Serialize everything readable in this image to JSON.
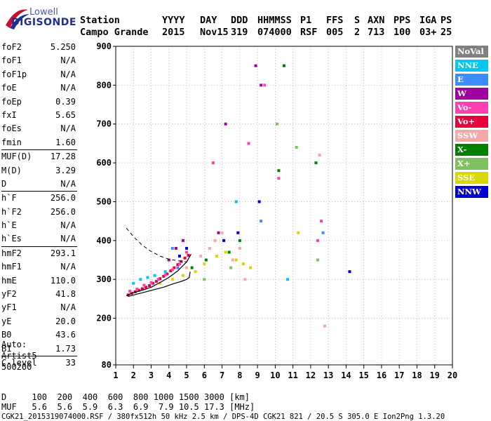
{
  "logo": {
    "line1": "Lowell",
    "line2": "DIGISONDE"
  },
  "header": {
    "labels": [
      "Station",
      "YYYY",
      "DAY",
      "DDD",
      "HHMMSS",
      "P1",
      "FFS",
      "S",
      "AXN",
      "PPS",
      "IGA",
      "PS"
    ],
    "values": [
      "Campo Grande",
      "2015",
      "Nov15",
      "319",
      "074000",
      "RSF",
      "005",
      "2",
      "713",
      "100",
      "03+",
      "25"
    ]
  },
  "params": [
    {
      "key": "foF2",
      "value": "5.250",
      "sep": false
    },
    {
      "key": "foF1",
      "value": "N/A",
      "sep": false
    },
    {
      "key": "foF1p",
      "value": "N/A",
      "sep": false
    },
    {
      "key": "foE",
      "value": "N/A",
      "sep": false
    },
    {
      "key": "foEp",
      "value": "0.39",
      "sep": false
    },
    {
      "key": "fxI",
      "value": "5.65",
      "sep": false
    },
    {
      "key": "foEs",
      "value": "N/A",
      "sep": false
    },
    {
      "key": "fmin",
      "value": "1.60",
      "sep": false
    },
    {
      "key": "MUF(D)",
      "value": "17.28",
      "sep": true
    },
    {
      "key": "M(D)",
      "value": "3.29",
      "sep": false
    },
    {
      "key": "D",
      "value": "N/A",
      "sep": false
    },
    {
      "key": "h`F",
      "value": "256.0",
      "sep": true
    },
    {
      "key": "h`F2",
      "value": "256.0",
      "sep": false
    },
    {
      "key": "h`E",
      "value": "N/A",
      "sep": false
    },
    {
      "key": "h`Es",
      "value": "N/A",
      "sep": false
    },
    {
      "key": "hmF2",
      "value": "293.1",
      "sep": true
    },
    {
      "key": "hmF1",
      "value": "N/A",
      "sep": false
    },
    {
      "key": "hmE",
      "value": "110.0",
      "sep": false
    },
    {
      "key": "yF2",
      "value": "41.8",
      "sep": false
    },
    {
      "key": "yF1",
      "value": "N/A",
      "sep": false
    },
    {
      "key": "yE",
      "value": "20.0",
      "sep": false
    },
    {
      "key": "B0",
      "value": "43.6",
      "sep": false
    },
    {
      "key": "B1",
      "value": "1.73",
      "sep": false
    },
    {
      "key": "C-level",
      "value": "33",
      "sep": true
    }
  ],
  "auto": {
    "line1": "Auto:",
    "line2": "Artist5",
    "line3": "500200"
  },
  "bottom": {
    "d_row": "D     100  200  400  600  800 1000 1500 3000 [km]",
    "muf_row": "MUF   5.6  5.6  5.9  6.3  6.9  7.9 10.5 17.3 [MHz]",
    "footer": "CGK21_2015319074000.RSF / 380fx512h 50 kHz 2.5 km / DPS-4D CGK21 821 / 20.5 S 305.0 E Ion2Png 1.3.20"
  },
  "legend": [
    {
      "label": "NoVal",
      "color": "#808080"
    },
    {
      "label": "NNE",
      "color": "#00c8f0"
    },
    {
      "label": "E",
      "color": "#3c8cff"
    },
    {
      "label": "W",
      "color": "#a000a0"
    },
    {
      "label": "Vo-",
      "color": "#ff40b0"
    },
    {
      "label": "Vo+",
      "color": "#e8003c"
    },
    {
      "label": "SSW",
      "color": "#f4a8a8"
    },
    {
      "label": "X-",
      "color": "#008000"
    },
    {
      "label": "X+",
      "color": "#80c060"
    },
    {
      "label": "SSE",
      "color": "#d8d800"
    },
    {
      "label": "NNW",
      "color": "#0000d0"
    }
  ],
  "chart_data": {
    "type": "scatter",
    "title": "",
    "xlabel": "",
    "ylabel": "",
    "xlim": [
      1,
      20
    ],
    "ylim": [
      80,
      900
    ],
    "x_ticks": [
      1,
      2,
      3,
      4,
      5,
      6,
      7,
      8,
      9,
      10,
      11,
      12,
      13,
      14,
      15,
      16,
      17,
      18,
      19,
      20
    ],
    "y_ticks": [
      80,
      200,
      300,
      400,
      500,
      600,
      700,
      800,
      900
    ],
    "grid": true,
    "legend_position": "right",
    "profile_curve": {
      "x": [
        1.7,
        2.2,
        2.7,
        3.2,
        3.7,
        4.2,
        4.7,
        5.0,
        5.15,
        5.2
      ],
      "y": [
        256,
        262,
        268,
        274,
        280,
        288,
        295,
        300,
        305,
        320
      ]
    },
    "trace_curve": {
      "x": [
        1.6,
        2.0,
        2.5,
        3.0,
        3.5,
        4.0,
        4.5,
        5.0,
        5.25
      ],
      "y": [
        258,
        266,
        272,
        280,
        292,
        305,
        322,
        345,
        365
      ]
    },
    "dashed_curve": {
      "x": [
        1.6,
        2.0,
        2.5,
        3.0,
        3.5,
        4.0,
        4.5,
        5.0
      ],
      "y": [
        432,
        410,
        388,
        372,
        360,
        352,
        348,
        345
      ]
    },
    "series": [
      {
        "name": "Vo+",
        "x": [
          1.7,
          1.9,
          2.1,
          2.3,
          2.5,
          2.7,
          2.9,
          3.1,
          3.3,
          3.5,
          3.7,
          3.9,
          4.1,
          4.3,
          4.5,
          4.7,
          4.9,
          5.1
        ],
        "y": [
          260,
          264,
          268,
          272,
          276,
          280,
          284,
          290,
          295,
          302,
          308,
          314,
          322,
          330,
          338,
          346,
          355,
          362
        ]
      },
      {
        "name": "Vo-",
        "x": [
          1.8,
          2.2,
          2.6,
          3.0,
          3.4,
          3.8,
          4.2,
          4.6,
          5.0,
          6.5,
          8.5,
          9.4,
          10.2,
          12.4,
          12.6
        ],
        "y": [
          270,
          275,
          285,
          292,
          300,
          312,
          325,
          340,
          370,
          600,
          650,
          800,
          560,
          400,
          450
        ]
      },
      {
        "name": "SSW",
        "x": [
          5.0,
          5.8,
          6.3,
          6.6,
          7.0,
          7.6,
          8.0,
          8.3,
          10.2,
          12.5,
          12.8
        ],
        "y": [
          330,
          360,
          380,
          400,
          420,
          350,
          380,
          300,
          580,
          620,
          180
        ]
      },
      {
        "name": "SSE",
        "x": [
          3.5,
          4.2,
          4.8,
          5.5,
          6.0,
          6.7,
          7.2,
          7.8,
          8.2,
          8.6,
          11.3
        ],
        "y": [
          290,
          300,
          310,
          320,
          340,
          360,
          370,
          350,
          340,
          330,
          420
        ]
      },
      {
        "name": "X-",
        "x": [
          5.3,
          6.1,
          7.4,
          8.0,
          10.2,
          10.5,
          12.3
        ],
        "y": [
          330,
          350,
          370,
          400,
          580,
          850,
          600
        ]
      },
      {
        "name": "NNE",
        "x": [
          2.0,
          2.4,
          2.8,
          3.2,
          3.8,
          7.8,
          10.7
        ],
        "y": [
          290,
          300,
          305,
          310,
          320,
          500,
          300
        ]
      },
      {
        "name": "W",
        "x": [
          4.0,
          4.4,
          4.8,
          6.8,
          7.2,
          8.9,
          9.2
        ],
        "y": [
          350,
          380,
          400,
          420,
          700,
          850,
          800
        ]
      },
      {
        "name": "NNW",
        "x": [
          4.6,
          5.0,
          7.1,
          7.9,
          9.1,
          14.2
        ],
        "y": [
          360,
          380,
          400,
          420,
          500,
          320
        ]
      },
      {
        "name": "X+",
        "x": [
          6.0,
          7.5,
          10.1,
          11.2,
          12.4
        ],
        "y": [
          300,
          330,
          700,
          640,
          350
        ]
      },
      {
        "name": "E",
        "x": [
          4.2,
          4.5,
          9.2,
          12.7
        ],
        "y": [
          380,
          330,
          450,
          420
        ]
      }
    ]
  }
}
